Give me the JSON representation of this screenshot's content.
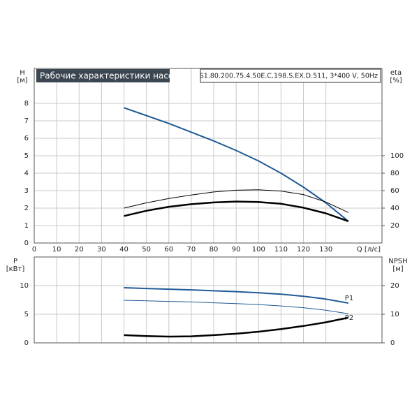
{
  "chart_data": [
    {
      "type": "line",
      "title": "Рабочие характеристики насоса",
      "subtitle": "S1.80.200.75.4.50E.C.198.S.EX.D.511, 3*400 V, 50Hz",
      "y_label": "H",
      "y_unit": "[м]",
      "y2_label": "eta",
      "y2_unit": "[%]",
      "x_label": "Q [л/с]",
      "xlim": [
        0,
        155
      ],
      "xticks": [
        0,
        10,
        20,
        30,
        40,
        50,
        60,
        70,
        80,
        90,
        100,
        110,
        120,
        130
      ],
      "ylim": [
        0,
        10
      ],
      "yticks": [
        0,
        1,
        2,
        3,
        4,
        5,
        6,
        7,
        8
      ],
      "y2lim": [
        0,
        200
      ],
      "y2ticks": [
        20,
        40,
        60,
        80,
        100
      ],
      "grid": true,
      "x": [
        40,
        50,
        60,
        70,
        80,
        90,
        100,
        110,
        120,
        130,
        140
      ],
      "series": [
        {
          "color": "#1f5a96",
          "line_width": 2,
          "values": [
            7.75,
            7.3,
            6.85,
            6.35,
            5.85,
            5.3,
            4.7,
            4.0,
            3.2,
            2.3,
            1.25
          ]
        },
        {
          "color": "#000000",
          "line_width": 1,
          "axis": "y2",
          "values": [
            40,
            46,
            51,
            55,
            58.5,
            60.5,
            61,
            59.5,
            55.5,
            47,
            35
          ]
        },
        {
          "color": "#000000",
          "line_width": 2.5,
          "axis": "y2",
          "values": [
            31,
            37,
            41.5,
            44.5,
            46.5,
            47.5,
            47,
            45,
            40.5,
            34,
            25
          ]
        }
      ]
    },
    {
      "type": "line",
      "y_label": "P",
      "y_unit": "[кВт]",
      "y2_label": "NPSH",
      "y2_unit": "[м]",
      "xlim": [
        0,
        155
      ],
      "ylim": [
        0,
        15
      ],
      "yticks": [
        0,
        5,
        10
      ],
      "y2lim": [
        0,
        30
      ],
      "y2ticks": [
        0,
        10,
        20
      ],
      "grid": true,
      "x": [
        40,
        50,
        60,
        70,
        80,
        90,
        100,
        110,
        120,
        130,
        140
      ],
      "series": [
        {
          "name": "P1",
          "color": "#1f5a96",
          "line_width": 2,
          "values": [
            9.63,
            9.5,
            9.38,
            9.25,
            9.1,
            8.95,
            8.75,
            8.5,
            8.15,
            7.65,
            6.95
          ]
        },
        {
          "name": "P2",
          "color": "#1f5a96",
          "line_width": 1,
          "values": [
            7.44,
            7.35,
            7.25,
            7.15,
            7.0,
            6.85,
            6.7,
            6.45,
            6.15,
            5.7,
            5.1
          ]
        },
        {
          "color": "#000000",
          "line_width": 2.5,
          "axis": "y2",
          "values": [
            2.7,
            2.4,
            2.2,
            2.3,
            2.7,
            3.2,
            3.9,
            4.8,
            5.9,
            7.2,
            8.8
          ]
        }
      ]
    }
  ]
}
